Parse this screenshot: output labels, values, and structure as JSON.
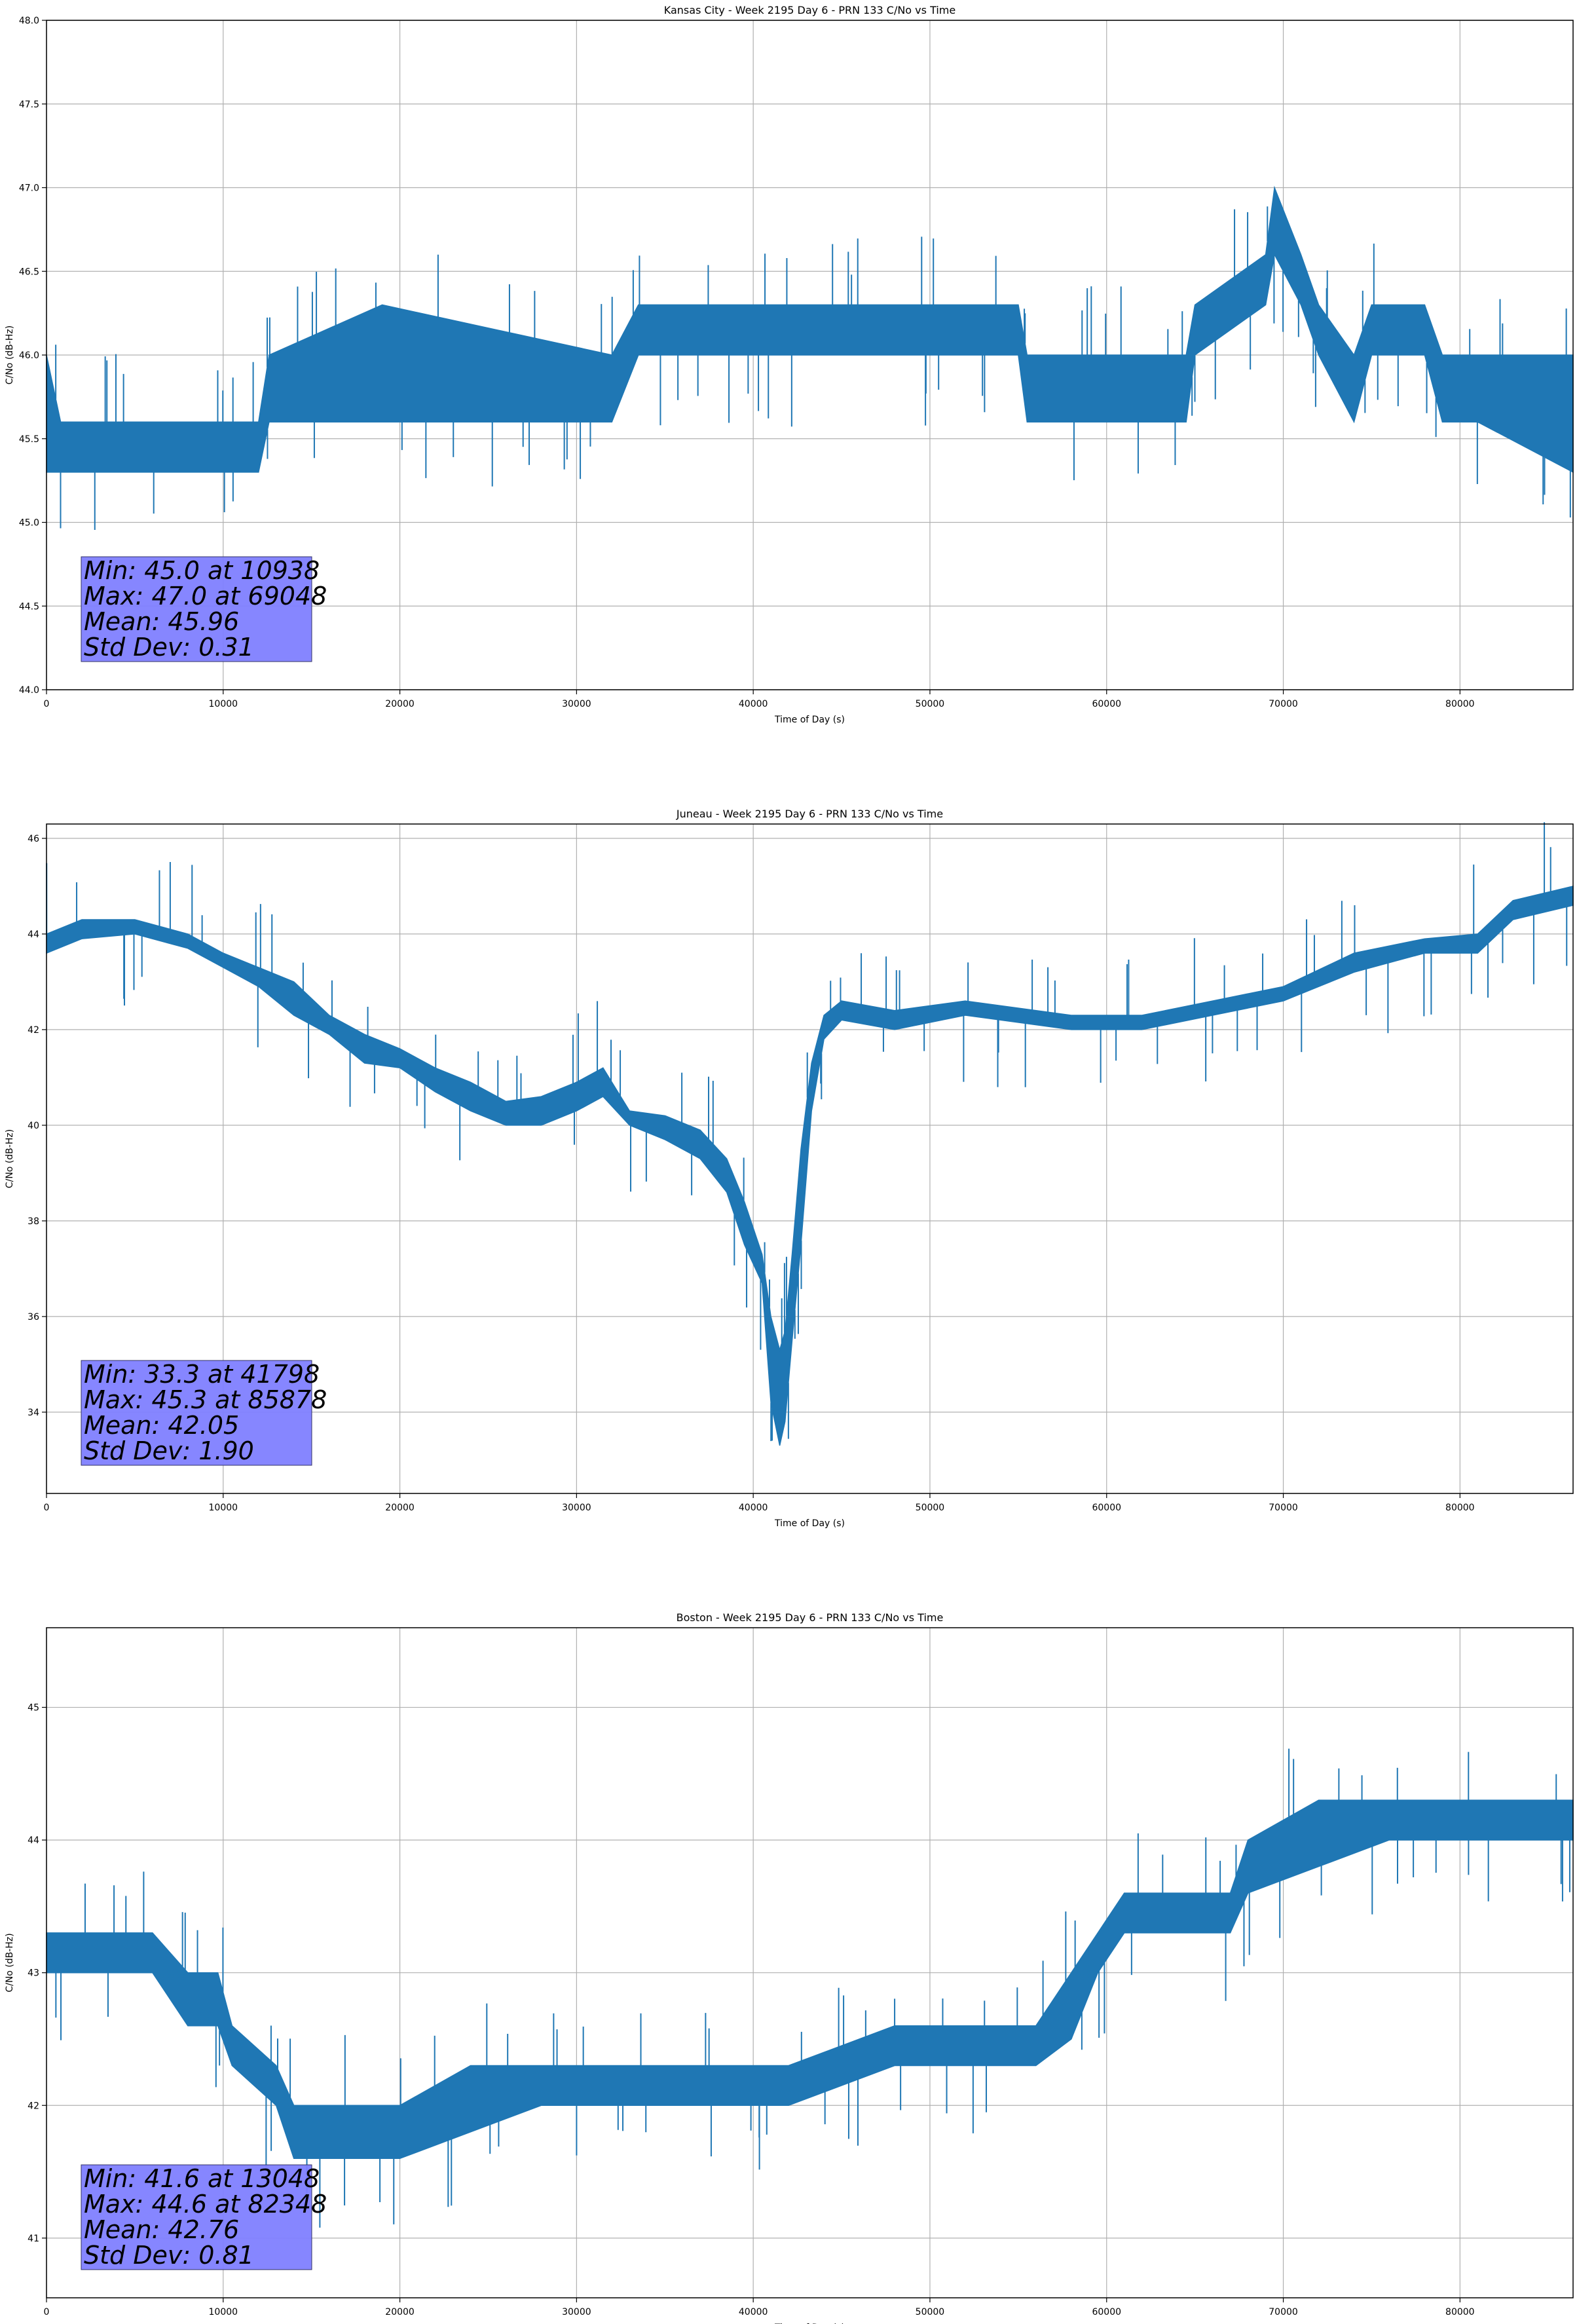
{
  "colors": {
    "series": "#1f77b4",
    "stats_box": "#8080ff",
    "grid": "#b0b0b0",
    "axis": "#000000"
  },
  "chart_data": [
    {
      "type": "line",
      "title": "Kansas City - Week 2195 Day 6 - PRN 133 C/No vs Time",
      "xlabel": "Time of Day (s)",
      "ylabel": "C/No (dB-Hz)",
      "xlim": [
        0,
        86400
      ],
      "ylim": [
        44.0,
        48.0
      ],
      "xticks": [
        0,
        10000,
        20000,
        30000,
        40000,
        50000,
        60000,
        70000,
        80000
      ],
      "yticks": [
        44.0,
        44.5,
        45.0,
        45.5,
        46.0,
        46.5,
        47.0,
        47.5,
        48.0
      ],
      "ytick_decimals": 1,
      "grid": true,
      "series": [
        {
          "x": [
            0,
            800,
            12000,
            12600,
            19000,
            32000,
            33500,
            44000,
            48000,
            55000,
            55500,
            64500,
            65000,
            69000,
            69500,
            71000,
            72000,
            74000,
            75000,
            78000,
            79000,
            81000,
            86400
          ],
          "band": [
            [
              45.3,
              46.0
            ],
            [
              45.3,
              45.6
            ],
            [
              45.3,
              45.6
            ],
            [
              45.6,
              46.0
            ],
            [
              45.6,
              46.3
            ],
            [
              45.6,
              46.0
            ],
            [
              46.0,
              46.3
            ],
            [
              46.0,
              46.3
            ],
            [
              46.0,
              46.3
            ],
            [
              46.0,
              46.3
            ],
            [
              45.6,
              46.0
            ],
            [
              45.6,
              46.0
            ],
            [
              46.0,
              46.3
            ],
            [
              46.3,
              46.6
            ],
            [
              46.6,
              47.0
            ],
            [
              46.3,
              46.6
            ],
            [
              46.0,
              46.3
            ],
            [
              45.6,
              46.0
            ],
            [
              46.0,
              46.3
            ],
            [
              46.0,
              46.3
            ],
            [
              45.6,
              46.0
            ],
            [
              45.6,
              46.0
            ],
            [
              45.3,
              46.0
            ]
          ]
        }
      ],
      "stats": [
        "Min: 45.0 at 10938",
        "Max: 47.0 at 69048",
        "Mean: 45.96",
        "Std Dev: 0.31"
      ]
    },
    {
      "type": "line",
      "title": "Juneau - Week 2195 Day 6 - PRN 133 C/No vs Time",
      "xlabel": "Time of Day (s)",
      "ylabel": "C/No (dB-Hz)",
      "xlim": [
        0,
        86400
      ],
      "ylim": [
        32.3,
        46.3
      ],
      "xticks": [
        0,
        10000,
        20000,
        30000,
        40000,
        50000,
        60000,
        70000,
        80000
      ],
      "yticks": [
        34,
        36,
        38,
        40,
        42,
        44,
        46
      ],
      "ytick_decimals": 0,
      "grid": true,
      "series": [
        {
          "x": [
            0,
            2000,
            5000,
            8000,
            10000,
            12000,
            14000,
            16000,
            18000,
            20000,
            22000,
            24000,
            26000,
            28000,
            30000,
            31500,
            33000,
            35000,
            37000,
            38500,
            39500,
            40500,
            41000,
            41500,
            41800,
            42200,
            42700,
            43300,
            44000,
            45000,
            48000,
            52000,
            58000,
            62000,
            66000,
            70000,
            74000,
            78000,
            81000,
            83000,
            86400
          ],
          "band": [
            [
              43.6,
              44.0
            ],
            [
              43.9,
              44.3
            ],
            [
              44.0,
              44.3
            ],
            [
              43.7,
              44.0
            ],
            [
              43.3,
              43.6
            ],
            [
              42.9,
              43.3
            ],
            [
              42.3,
              43.0
            ],
            [
              41.9,
              42.3
            ],
            [
              41.3,
              41.9
            ],
            [
              41.2,
              41.6
            ],
            [
              40.7,
              41.2
            ],
            [
              40.3,
              40.9
            ],
            [
              40.0,
              40.5
            ],
            [
              40.0,
              40.6
            ],
            [
              40.3,
              40.9
            ],
            [
              40.6,
              41.2
            ],
            [
              40.0,
              40.3
            ],
            [
              39.7,
              40.2
            ],
            [
              39.3,
              39.9
            ],
            [
              38.6,
              39.3
            ],
            [
              37.5,
              38.4
            ],
            [
              36.7,
              37.3
            ],
            [
              34.2,
              36.0
            ],
            [
              33.3,
              35.3
            ],
            [
              33.8,
              35.7
            ],
            [
              35.5,
              37.3
            ],
            [
              37.5,
              39.5
            ],
            [
              40.3,
              41.3
            ],
            [
              41.8,
              42.3
            ],
            [
              42.2,
              42.6
            ],
            [
              42.0,
              42.4
            ],
            [
              42.3,
              42.6
            ],
            [
              42.0,
              42.3
            ],
            [
              42.0,
              42.3
            ],
            [
              42.3,
              42.6
            ],
            [
              42.6,
              42.9
            ],
            [
              43.2,
              43.6
            ],
            [
              43.6,
              43.9
            ],
            [
              43.6,
              44.0
            ],
            [
              44.3,
              44.7
            ],
            [
              44.6,
              45.0
            ]
          ]
        }
      ],
      "stats": [
        "Min: 33.3 at 41798",
        "Max: 45.3 at 85878",
        "Mean: 42.05",
        "Std Dev: 1.90"
      ]
    },
    {
      "type": "line",
      "title": "Boston - Week 2195 Day 6 - PRN 133 C/No vs Time",
      "xlabel": "Time of Day (s)",
      "ylabel": "C/No (dB-Hz)",
      "xlim": [
        0,
        86400
      ],
      "ylim": [
        40.55,
        45.6
      ],
      "xticks": [
        0,
        10000,
        20000,
        30000,
        40000,
        50000,
        60000,
        70000,
        80000
      ],
      "yticks": [
        41,
        42,
        43,
        44,
        45
      ],
      "ytick_decimals": 0,
      "grid": true,
      "series": [
        {
          "x": [
            0,
            6000,
            8000,
            9700,
            10500,
            13000,
            14000,
            16000,
            20000,
            24000,
            28000,
            32000,
            38000,
            42000,
            48000,
            52000,
            56000,
            58000,
            59500,
            61000,
            63000,
            67000,
            68000,
            72000,
            76000,
            80000,
            86400
          ],
          "band": [
            [
              43.0,
              43.3
            ],
            [
              43.0,
              43.3
            ],
            [
              42.6,
              43.0
            ],
            [
              42.6,
              43.0
            ],
            [
              42.3,
              42.6
            ],
            [
              42.0,
              42.3
            ],
            [
              41.6,
              42.0
            ],
            [
              41.6,
              42.0
            ],
            [
              41.6,
              42.0
            ],
            [
              41.8,
              42.3
            ],
            [
              42.0,
              42.3
            ],
            [
              42.0,
              42.3
            ],
            [
              42.0,
              42.3
            ],
            [
              42.0,
              42.3
            ],
            [
              42.3,
              42.6
            ],
            [
              42.3,
              42.6
            ],
            [
              42.3,
              42.6
            ],
            [
              42.5,
              43.0
            ],
            [
              43.0,
              43.3
            ],
            [
              43.3,
              43.6
            ],
            [
              43.3,
              43.6
            ],
            [
              43.3,
              43.6
            ],
            [
              43.6,
              44.0
            ],
            [
              43.8,
              44.3
            ],
            [
              44.0,
              44.3
            ],
            [
              44.0,
              44.3
            ],
            [
              44.0,
              44.3
            ]
          ]
        }
      ],
      "stats": [
        "Min: 41.6 at 13048",
        "Max: 44.6 at 82348",
        "Mean: 42.76",
        "Std Dev: 0.81"
      ]
    }
  ]
}
